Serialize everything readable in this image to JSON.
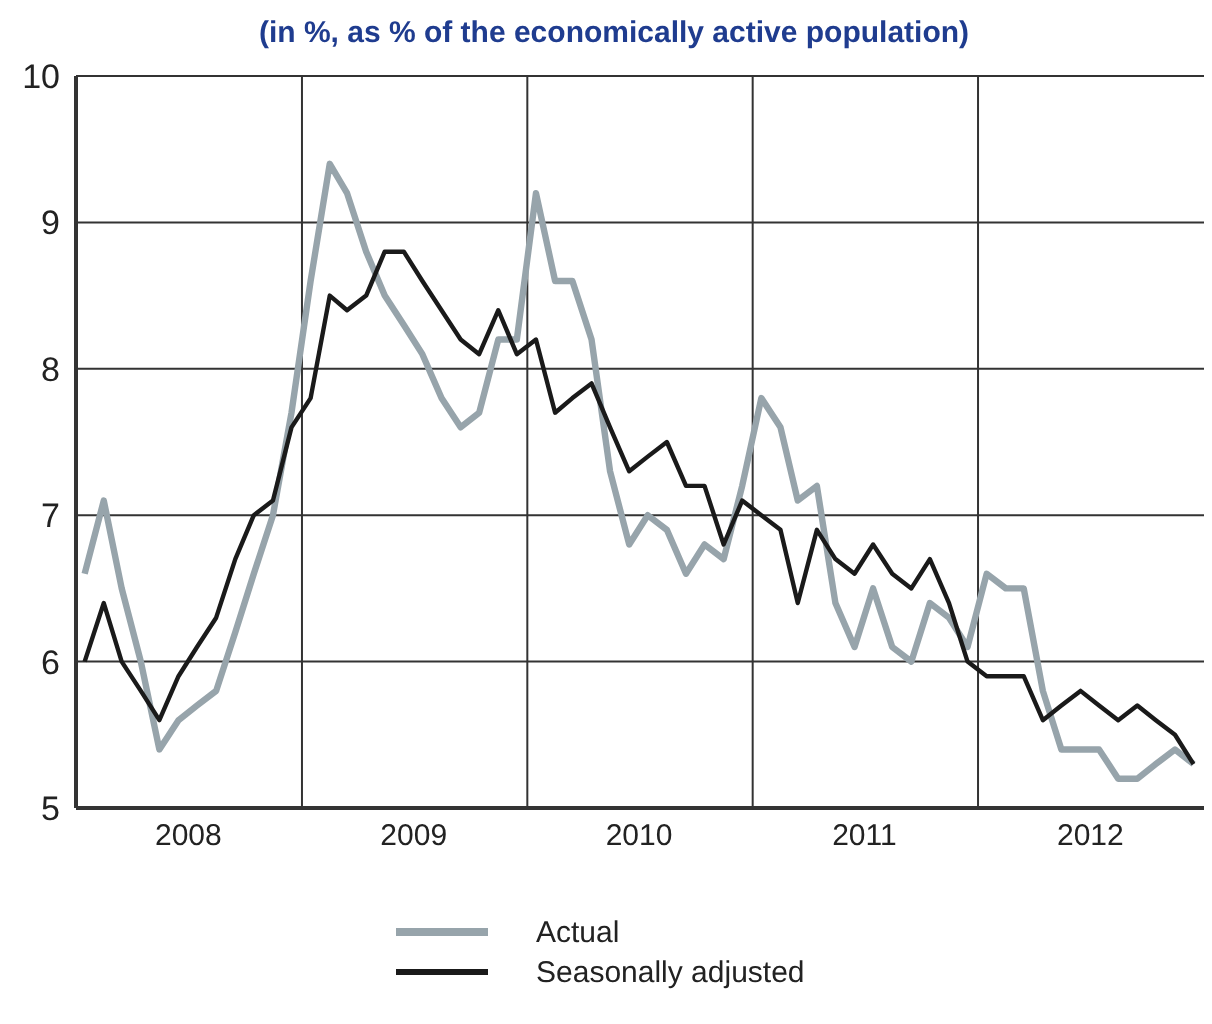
{
  "chart_data": {
    "type": "line",
    "subtitle": "(in %, as % of the economically active population)",
    "x": [
      "2008-01-15",
      "2008-02-15",
      "2008-03-15",
      "2008-04-15",
      "2008-05-15",
      "2008-06-15",
      "2008-07-15",
      "2008-08-15",
      "2008-09-15",
      "2008-10-15",
      "2008-11-15",
      "2008-12-15",
      "2009-01-15",
      "2009-02-15",
      "2009-03-15",
      "2009-04-15",
      "2009-05-15",
      "2009-06-15",
      "2009-07-15",
      "2009-08-15",
      "2009-09-15",
      "2009-10-15",
      "2009-11-15",
      "2009-12-15",
      "2010-01-15",
      "2010-02-15",
      "2010-03-15",
      "2010-04-15",
      "2010-05-15",
      "2010-06-15",
      "2010-07-15",
      "2010-08-15",
      "2010-09-15",
      "2010-10-15",
      "2010-11-15",
      "2010-12-15",
      "2011-01-15",
      "2011-02-15",
      "2011-03-15",
      "2011-04-15",
      "2011-05-15",
      "2011-06-15",
      "2011-07-15",
      "2011-08-15",
      "2011-09-15",
      "2011-10-15",
      "2011-11-15",
      "2011-12-15",
      "2012-01-15",
      "2012-02-15",
      "2012-03-15",
      "2012-04-15",
      "2012-05-15",
      "2012-06-15",
      "2012-07-15",
      "2012-08-15",
      "2012-09-15",
      "2012-10-15",
      "2012-11-15",
      "2012-12-15"
    ],
    "series": [
      {
        "name": "Actual",
        "color": "#97a4ab",
        "values": [
          6.6,
          7.1,
          6.5,
          6.0,
          5.4,
          5.6,
          5.7,
          5.8,
          6.2,
          6.6,
          7.0,
          7.7,
          8.6,
          9.4,
          9.2,
          8.8,
          8.5,
          8.3,
          8.1,
          7.8,
          7.6,
          7.7,
          8.2,
          8.2,
          9.2,
          8.6,
          8.6,
          8.2,
          7.3,
          6.8,
          7.0,
          6.9,
          6.6,
          6.8,
          6.7,
          7.2,
          7.8,
          7.6,
          7.1,
          7.2,
          6.4,
          6.1,
          6.5,
          6.1,
          6.0,
          6.4,
          6.3,
          6.1,
          6.6,
          6.5,
          6.5,
          5.8,
          5.4,
          5.4,
          5.4,
          5.2,
          5.2,
          5.3,
          5.4,
          5.3
        ]
      },
      {
        "name": "Seasonally adjusted",
        "color": "#1a1a1a",
        "values": [
          6.0,
          6.4,
          6.0,
          5.8,
          5.6,
          5.9,
          6.1,
          6.3,
          6.7,
          7.0,
          7.1,
          7.6,
          7.8,
          8.5,
          8.4,
          8.5,
          8.8,
          8.8,
          8.6,
          8.4,
          8.2,
          8.1,
          8.4,
          8.1,
          8.2,
          7.7,
          7.8,
          7.9,
          7.6,
          7.3,
          7.4,
          7.5,
          7.2,
          7.2,
          6.8,
          7.1,
          7.0,
          6.9,
          6.4,
          6.9,
          6.7,
          6.6,
          6.8,
          6.6,
          6.5,
          6.7,
          6.4,
          6.0,
          5.9,
          5.9,
          5.9,
          5.6,
          5.7,
          5.8,
          5.7,
          5.6,
          5.7,
          5.6,
          5.5,
          5.3
        ]
      }
    ],
    "xlim": [
      "2008-01-01",
      "2013-01-01"
    ],
    "xticks": [
      {
        "value": "2008-07-01",
        "label": "2008"
      },
      {
        "value": "2009-01-01",
        "label": null
      },
      {
        "value": "2009-07-01",
        "label": "2009"
      },
      {
        "value": "2010-01-01",
        "label": null
      },
      {
        "value": "2010-07-01",
        "label": "2010"
      },
      {
        "value": "2011-01-01",
        "label": null
      },
      {
        "value": "2011-07-01",
        "label": "2011"
      },
      {
        "value": "2012-01-01",
        "label": null
      },
      {
        "value": "2012-07-01",
        "label": "2012"
      }
    ],
    "ylim": [
      5,
      10
    ],
    "yticks": [
      5,
      6,
      7,
      8,
      9,
      10
    ],
    "grid": true,
    "legend": "bottom",
    "line_style": "solid",
    "marker": "none"
  }
}
